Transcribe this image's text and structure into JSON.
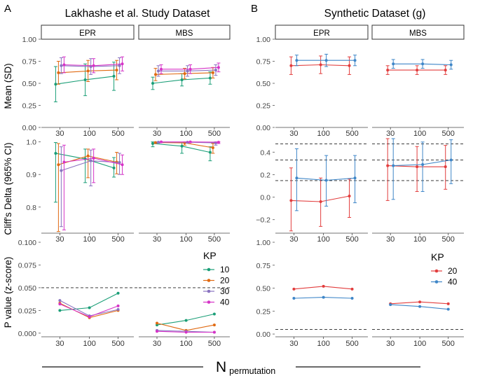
{
  "figure": {
    "panel_a_letter": "A",
    "panel_b_letter": "B",
    "panel_a_title": "Lakhashe et al. Study Dataset",
    "panel_b_title": "Synthetic Dataset (g)",
    "xlabel_main": "N",
    "xlabel_sub": "permutation"
  },
  "colors": {
    "10": "#1a9e77",
    "20": "#e06a12",
    "30": "#8a73c0",
    "40": "#d633c7",
    "syn20": "#e23d3d",
    "syn40": "#3e86c8"
  },
  "chart_data": [
    {
      "id": "A-mean",
      "type": "scatter",
      "panel": "A",
      "ylabel": "Mean (SD)",
      "ylim": [
        0,
        1
      ],
      "yticks": [
        0,
        0.25,
        0.5,
        0.75,
        1
      ],
      "ytick_labels": [
        "0.00",
        "0.25",
        "0.50",
        "0.75",
        "1.00"
      ],
      "facets": [
        "EPR",
        "MBS"
      ],
      "categories": [
        "30",
        "100",
        "500"
      ],
      "series": [
        {
          "name": "10",
          "color": "#1a9e77",
          "EPR": {
            "mean": [
              0.49,
              0.54,
              0.58
            ],
            "sd": [
              0.2,
              0.18,
              0.16
            ]
          },
          "MBS": {
            "mean": [
              0.5,
              0.54,
              0.56
            ],
            "sd": [
              0.07,
              0.07,
              0.07
            ]
          }
        },
        {
          "name": "20",
          "color": "#e06a12",
          "EPR": {
            "mean": [
              0.62,
              0.64,
              0.65
            ],
            "sd": [
              0.13,
              0.12,
              0.11
            ]
          },
          "MBS": {
            "mean": [
              0.6,
              0.61,
              0.62
            ],
            "sd": [
              0.07,
              0.06,
              0.06
            ]
          }
        },
        {
          "name": "30",
          "color": "#8a73c0",
          "EPR": {
            "mean": [
              0.7,
              0.69,
              0.7
            ],
            "sd": [
              0.09,
              0.09,
              0.09
            ]
          },
          "MBS": {
            "mean": [
              0.64,
              0.64,
              0.65
            ],
            "sd": [
              0.06,
              0.06,
              0.06
            ]
          }
        },
        {
          "name": "40",
          "color": "#d633c7",
          "EPR": {
            "mean": [
              0.71,
              0.7,
              0.72
            ],
            "sd": [
              0.09,
              0.08,
              0.08
            ]
          },
          "MBS": {
            "mean": [
              0.66,
              0.66,
              0.68
            ],
            "sd": [
              0.05,
              0.05,
              0.05
            ]
          }
        }
      ]
    },
    {
      "id": "A-delta",
      "type": "scatter",
      "panel": "A",
      "ylabel": "Cliff's Delta (965% CI)",
      "ylim": [
        0.72,
        1.01
      ],
      "yticks": [
        0.8,
        0.9,
        1.0
      ],
      "ytick_labels": [
        "0.8",
        "0.9",
        "1.0"
      ],
      "facets": [
        "EPR",
        "MBS"
      ],
      "categories": [
        "30",
        "100",
        "500"
      ],
      "series": [
        {
          "name": "10",
          "color": "#1a9e77",
          "EPR": {
            "est": [
              0.965,
              0.948,
              0.92
            ],
            "lo": [
              0.815,
              0.875,
              0.892
            ],
            "hi": [
              0.998,
              0.978,
              0.952
            ]
          },
          "MBS": {
            "est": [
              0.995,
              0.987,
              0.968
            ],
            "lo": [
              0.985,
              0.965,
              0.942
            ],
            "hi": [
              1.0,
              0.998,
              0.985
            ]
          }
        },
        {
          "name": "20",
          "color": "#e06a12",
          "EPR": {
            "est": [
              0.93,
              0.957,
              0.938
            ],
            "lo": [
              0.725,
              0.89,
              0.902
            ],
            "hi": [
              0.995,
              0.978,
              0.968
            ]
          },
          "MBS": {
            "est": [
              0.998,
              0.997,
              0.982
            ],
            "lo": [
              0.995,
              0.99,
              0.965
            ],
            "hi": [
              1.0,
              1.0,
              0.995
            ]
          }
        },
        {
          "name": "30",
          "color": "#8a73c0",
          "EPR": {
            "est": [
              0.912,
              0.942,
              0.937
            ],
            "lo": [
              0.74,
              0.865,
              0.9
            ],
            "hi": [
              0.985,
              0.975,
              0.965
            ]
          },
          "MBS": {
            "est": [
              0.999,
              0.999,
              0.997
            ],
            "lo": [
              0.996,
              0.996,
              0.99
            ],
            "hi": [
              1.0,
              1.0,
              1.0
            ]
          }
        },
        {
          "name": "40",
          "color": "#d633c7",
          "EPR": {
            "est": [
              0.938,
              0.95,
              0.93
            ],
            "lo": [
              0.73,
              0.875,
              0.9
            ],
            "hi": [
              0.99,
              0.978,
              0.96
            ]
          },
          "MBS": {
            "est": [
              1.0,
              1.0,
              0.999
            ],
            "lo": [
              0.998,
              0.998,
              0.995
            ],
            "hi": [
              1.0,
              1.0,
              1.0
            ]
          }
        }
      ]
    },
    {
      "id": "A-pvalue",
      "type": "line",
      "panel": "A",
      "ylabel": "P value (z-score)",
      "ylim": [
        -0.004,
        0.1
      ],
      "yticks": [
        0,
        0.025,
        0.05,
        0.075,
        0.1
      ],
      "ytick_labels": [
        "0.000",
        "0.025",
        "0.050",
        "0.075",
        "0.100"
      ],
      "hline": 0.05,
      "facets": [
        "EPR",
        "MBS"
      ],
      "categories": [
        "30",
        "100",
        "500"
      ],
      "series": [
        {
          "name": "10",
          "color": "#1a9e77",
          "EPR": [
            0.025,
            0.028,
            0.044
          ],
          "MBS": [
            0.009,
            0.014,
            0.021
          ]
        },
        {
          "name": "20",
          "color": "#e06a12",
          "EPR": [
            0.033,
            0.017,
            0.025
          ],
          "MBS": [
            0.011,
            0.003,
            0.009
          ]
        },
        {
          "name": "30",
          "color": "#8a73c0",
          "EPR": [
            0.036,
            0.019,
            0.026
          ],
          "MBS": [
            0.003,
            0.002,
            0.001
          ]
        },
        {
          "name": "40",
          "color": "#d633c7",
          "EPR": [
            0.032,
            0.018,
            0.03
          ],
          "MBS": [
            0.002,
            0.001,
            0.001
          ]
        }
      ],
      "legend": {
        "title": "KP",
        "entries": [
          "10",
          "20",
          "30",
          "40"
        ]
      }
    },
    {
      "id": "B-mean",
      "type": "scatter",
      "panel": "B",
      "ylabel": "",
      "ylim": [
        0,
        1
      ],
      "yticks": [
        0,
        0.25,
        0.5,
        0.75,
        1
      ],
      "ytick_labels": [
        "0.00",
        "0.25",
        "0.50",
        "0.75",
        "1.00"
      ],
      "facets": [
        "EPR",
        "MBS"
      ],
      "categories": [
        "30",
        "100",
        "500"
      ],
      "series": [
        {
          "name": "20",
          "color": "#e23d3d",
          "EPR": {
            "mean": [
              0.7,
              0.71,
              0.7
            ],
            "sd": [
              0.1,
              0.1,
              0.1
            ]
          },
          "MBS": {
            "mean": [
              0.65,
              0.65,
              0.65
            ],
            "sd": [
              0.05,
              0.05,
              0.05
            ]
          }
        },
        {
          "name": "40",
          "color": "#3e86c8",
          "EPR": {
            "mean": [
              0.76,
              0.76,
              0.76
            ],
            "sd": [
              0.06,
              0.07,
              0.06
            ]
          },
          "MBS": {
            "mean": [
              0.72,
              0.72,
              0.71
            ],
            "sd": [
              0.05,
              0.05,
              0.05
            ]
          }
        }
      ]
    },
    {
      "id": "B-delta",
      "type": "scatter",
      "panel": "B",
      "ylabel": "",
      "ylim": [
        -0.32,
        0.52
      ],
      "yticks": [
        -0.2,
        0,
        0.2,
        0.4
      ],
      "ytick_labels": [
        "−0.2",
        "0.0",
        "0.2",
        "0.4"
      ],
      "hlines": [
        0.147,
        0.33,
        0.474
      ],
      "facets": [
        "EPR",
        "MBS"
      ],
      "categories": [
        "30",
        "100",
        "500"
      ],
      "series": [
        {
          "name": "20",
          "color": "#e23d3d",
          "EPR": {
            "est": [
              -0.03,
              -0.04,
              0.01
            ],
            "lo": [
              -0.3,
              -0.26,
              -0.18
            ],
            "hi": [
              0.26,
              0.17,
              0.16
            ]
          },
          "MBS": {
            "est": [
              0.28,
              0.27,
              0.27
            ],
            "lo": [
              -0.03,
              0.05,
              0.07
            ],
            "hi": [
              0.52,
              0.45,
              0.46
            ]
          }
        },
        {
          "name": "40",
          "color": "#3e86c8",
          "EPR": {
            "est": [
              0.17,
              0.15,
              0.17
            ],
            "lo": [
              -0.12,
              -0.08,
              -0.05
            ],
            "hi": [
              0.43,
              0.37,
              0.37
            ]
          },
          "MBS": {
            "est": [
              0.28,
              0.29,
              0.33
            ],
            "lo": [
              -0.02,
              0.05,
              0.12
            ],
            "hi": [
              0.52,
              0.49,
              0.51
            ]
          }
        }
      ]
    },
    {
      "id": "B-pvalue",
      "type": "line",
      "panel": "B",
      "ylabel": "",
      "ylim": [
        -0.03,
        1.0
      ],
      "yticks": [
        0,
        0.25,
        0.5,
        0.75,
        1
      ],
      "ytick_labels": [
        "0.00",
        "0.25",
        "0.50",
        "0.75",
        "1.00"
      ],
      "hline": 0.05,
      "facets": [
        "EPR",
        "MBS"
      ],
      "categories": [
        "30",
        "100",
        "500"
      ],
      "series": [
        {
          "name": "20",
          "color": "#e23d3d",
          "EPR": [
            0.49,
            0.52,
            0.49
          ],
          "MBS": [
            0.33,
            0.35,
            0.33
          ]
        },
        {
          "name": "40",
          "color": "#3e86c8",
          "EPR": [
            0.39,
            0.4,
            0.39
          ],
          "MBS": [
            0.32,
            0.3,
            0.27
          ]
        }
      ],
      "legend": {
        "title": "KP",
        "entries": [
          "20",
          "40"
        ]
      }
    }
  ]
}
